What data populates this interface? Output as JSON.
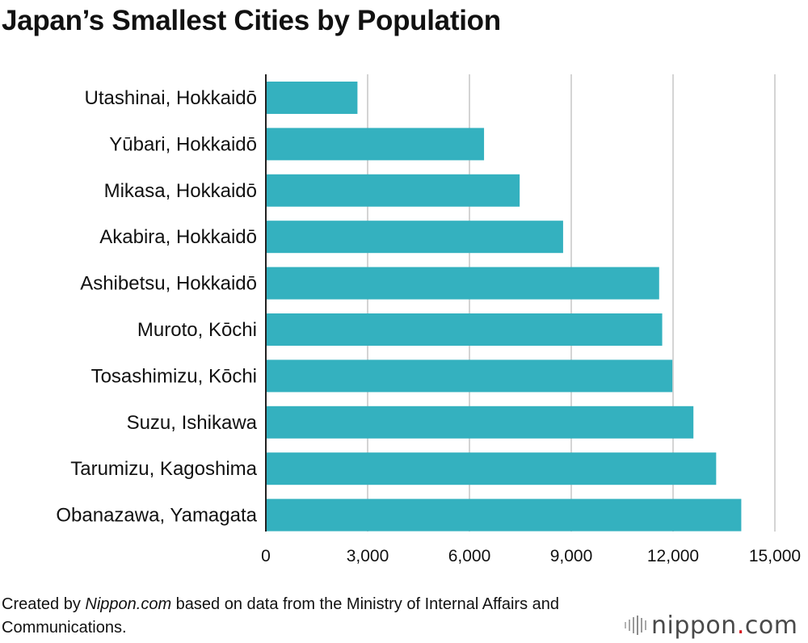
{
  "header": {
    "title": "Japan’s Smallest Cities by Population"
  },
  "chart_data": {
    "type": "bar",
    "orientation": "horizontal",
    "title": "Japan’s Smallest Cities by Population",
    "xlabel": "",
    "ylabel": "",
    "xlim": [
      0,
      15000
    ],
    "grid": true,
    "categories": [
      "Utashinai, Hokkaidō",
      "Yūbari, Hokkaidō",
      "Mikasa, Hokkaidō",
      "Akabira, Hokkaidō",
      "Ashibetsu, Hokkaidō",
      "Muroto, Kōchi",
      "Tosashimizu, Kōchi",
      "Suzu, Ishikawa",
      "Tarumizu, Kagoshima",
      "Obanazawa, Yamagata"
    ],
    "values": [
      2700,
      6430,
      7480,
      8760,
      11590,
      11680,
      11980,
      12600,
      13270,
      14010
    ],
    "ticks": [
      {
        "value": 0,
        "label": "0"
      },
      {
        "value": 3000,
        "label": "3,000"
      },
      {
        "value": 6000,
        "label": "6,000"
      },
      {
        "value": 9000,
        "label": "9,000"
      },
      {
        "value": 12000,
        "label": "12,000"
      },
      {
        "value": 15000,
        "label": "15,000"
      }
    ],
    "bar_color": "#34b1bf",
    "grid_color": "#d4d4d4",
    "axis_color": "#222222"
  },
  "footer": {
    "source_prefix": "Created by ",
    "source_site": "Nippon.com",
    "source_suffix": " based on data from the Ministry of Internal Affairs and Communications.",
    "logo_name": "nippon",
    "logo_dot": ".",
    "logo_tld": "com",
    "logo_icon": "sound-wave-icon",
    "logo_accent": "#d6151d"
  }
}
